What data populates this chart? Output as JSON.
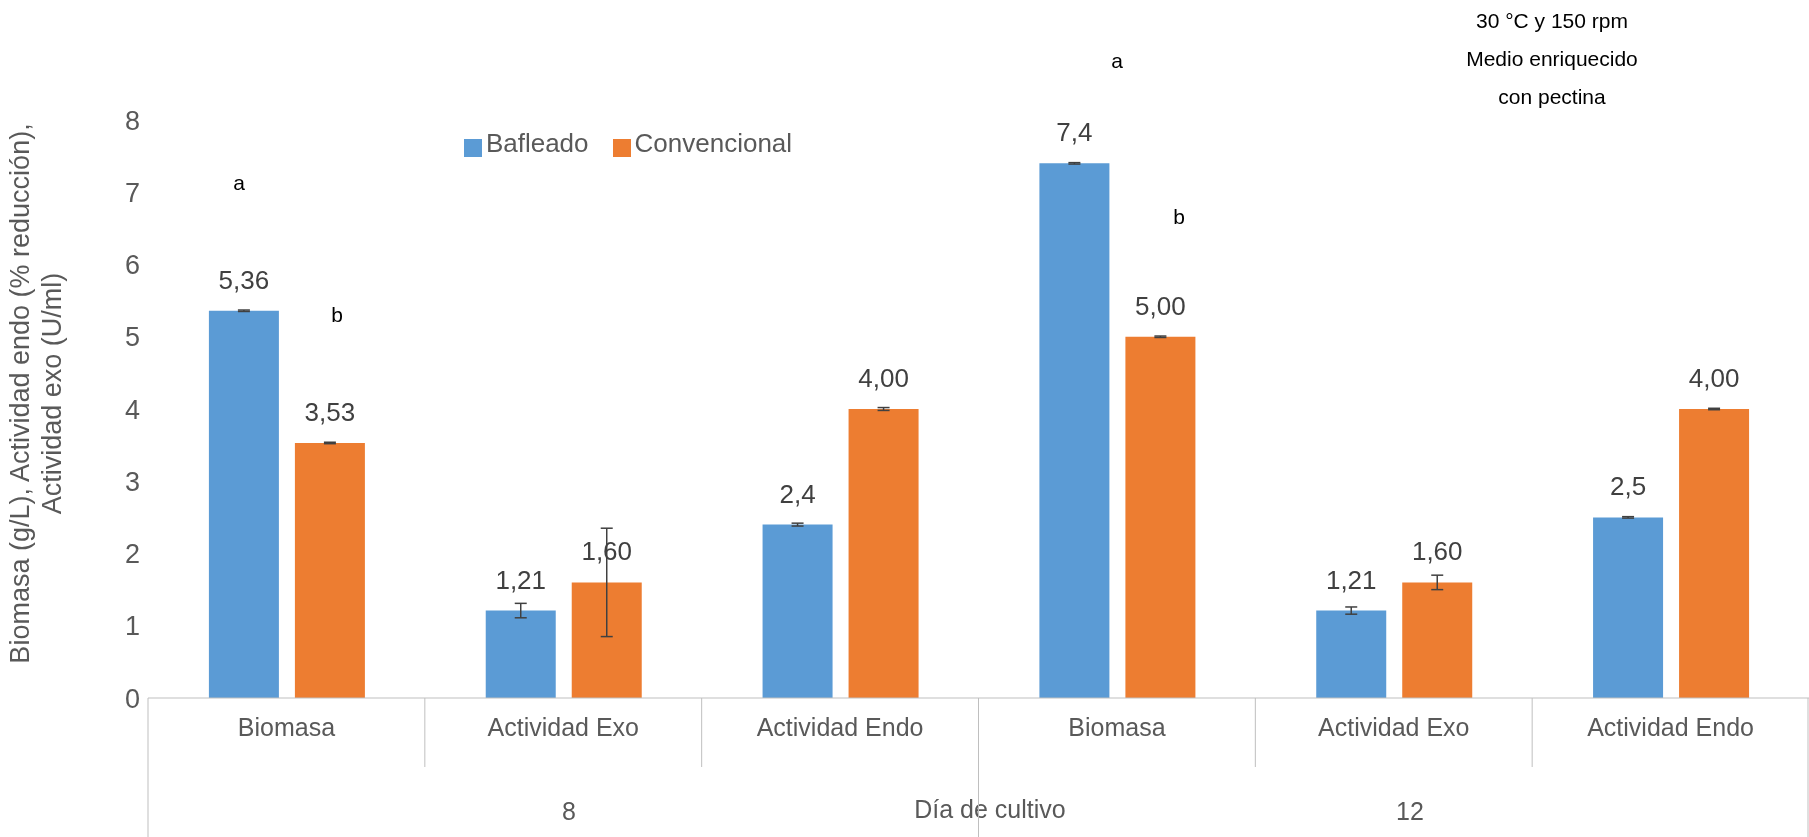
{
  "chart_data": {
    "type": "bar",
    "categories": [
      "Biomasa",
      "Actividad Exo",
      "Actividad Endo",
      "Biomasa",
      "Actividad Exo",
      "Actividad Endo"
    ],
    "xlabel": "Día de cultivo",
    "ylabel": "Biomasa (g/L), Actividad endo (% reducción),\nActividad exo (U/ml)",
    "series": [
      {
        "name": "Bafleado",
        "color": "#5b9bd5",
        "values": [
          5.36,
          1.21,
          2.4,
          7.4,
          1.21,
          2.5
        ],
        "errors": [
          0.01,
          0.1,
          0.02,
          0.01,
          0.05,
          0.01
        ],
        "value_labels": [
          "5,36",
          "1,21",
          "2,4",
          "7,4",
          "1,21",
          "2,5"
        ]
      },
      {
        "name": "Convencional",
        "color": "#ed7d31",
        "values": [
          3.53,
          1.6,
          4.0,
          5.0,
          1.6,
          4.0
        ],
        "errors": [
          0.01,
          0.75,
          0.02,
          0.01,
          0.1,
          0.01
        ],
        "value_labels": [
          "3,53",
          "1,60",
          "4,00",
          "5,00",
          "1,60",
          "4,00"
        ]
      }
    ],
    "ylim": [
      0,
      8
    ],
    "yticks": [
      0,
      1,
      2,
      3,
      4,
      5,
      6,
      7,
      8
    ],
    "grid": false,
    "legend": "top",
    "annotations": [
      "a",
      "b",
      "a",
      "b",
      "30 °C y 150 rpm\nMedio enriquecido\ncon pectina",
      "8",
      "12"
    ]
  }
}
